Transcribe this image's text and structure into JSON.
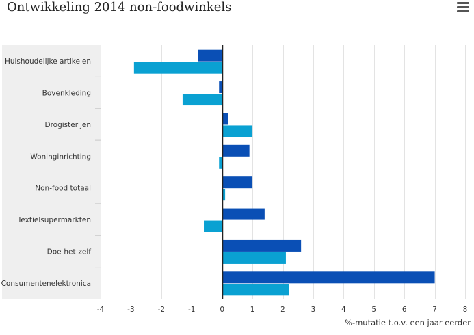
{
  "header": {
    "title": "Ontwikkeling 2014 non-foodwinkels",
    "menu_icon": "hamburger-menu-icon"
  },
  "colors": {
    "series_dark": "#0a4fb5",
    "series_light": "#0aa1d2",
    "category_band": "#efefef",
    "grid": "#e3e3e3",
    "zero_line": "#222222"
  },
  "chart_data": {
    "type": "bar",
    "orientation": "horizontal",
    "categories": [
      "Huishoudelijke artikelen",
      "Bovenkleding",
      "Drogisterijen",
      "Woninginrichting",
      "Non-food totaal",
      "Textielsupermarkten",
      "Doe-het-zelf",
      "Consumentenelektronica"
    ],
    "series": [
      {
        "values": [
          -0.8,
          -0.1,
          0.2,
          0.9,
          1.0,
          1.4,
          2.6,
          7.0
        ]
      },
      {
        "values": [
          -2.9,
          -1.3,
          1.0,
          -0.1,
          0.1,
          -0.6,
          2.1,
          2.2
        ]
      }
    ],
    "xlim": [
      -4,
      8
    ],
    "xticks": [
      "-4",
      "-3",
      "-2",
      "-1",
      "0",
      "1",
      "2",
      "3",
      "4",
      "5",
      "6",
      "7",
      "8"
    ],
    "xlabel": "%-mutatie t.o.v. een jaar eerder",
    "grid": "vertical",
    "legend": "none"
  }
}
